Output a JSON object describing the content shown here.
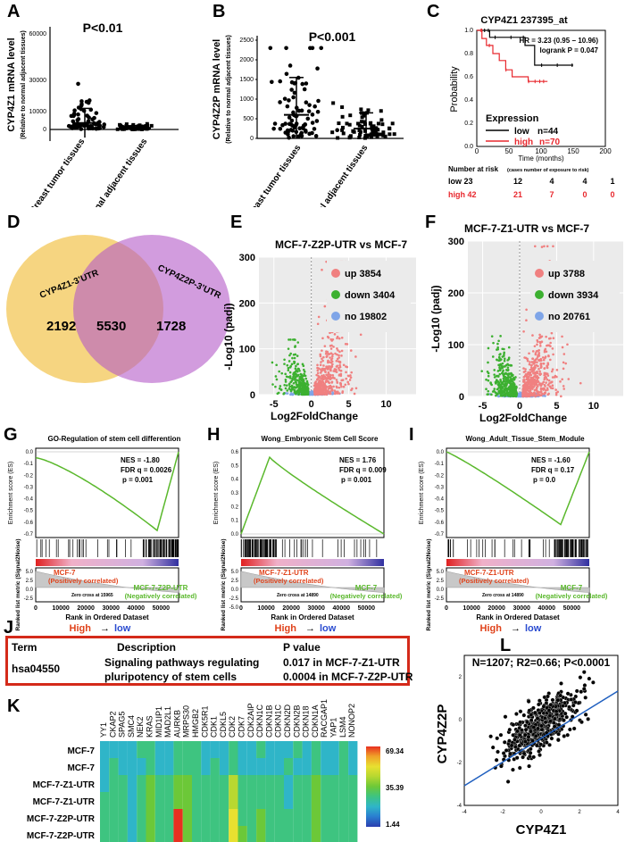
{
  "panels": {
    "A": {
      "letter": "A",
      "pval": "P<0.01",
      "ylabel": "CYP4Z1 mRNA level",
      "ylabel2": "(Relative to normal adjacent tissues)",
      "ticks": [
        "60000",
        "30000",
        "10000",
        "0"
      ],
      "cats": [
        "Breast tumor tissues",
        "Normal adjacent tissues"
      ]
    },
    "B": {
      "letter": "B",
      "pval": "P<0.001",
      "ylabel": "CYP4Z2P mRNA level",
      "ylabel2": "(Relative to normal adjacent tissues)",
      "ticks": [
        "2500",
        "2000",
        "1500",
        "1000",
        "500",
        "0"
      ],
      "cats": [
        "Breast tumor tissues",
        "Normal adjacent tissues"
      ]
    },
    "C": {
      "letter": "C",
      "title": "CYP4Z1 237395_at",
      "hr": "HR = 3.23 (0.95 − 10.96)",
      "logrank": "logrank P = 0.047",
      "ylabel": "Probability",
      "xlabel": "Time (months)",
      "yticks": [
        "1.0",
        "0.8",
        "0.6",
        "0.4",
        "0.2",
        "0.0"
      ],
      "xticks": [
        "0",
        "50",
        "100",
        "150",
        "200"
      ],
      "legend_title": "Expression",
      "low": "low",
      "low_n": "n=44",
      "high": "high",
      "high_n": "n=70",
      "risk_title": "Number at risk",
      "risk_note": "(cases number of exposure to risk)",
      "risk_low": [
        "low 23",
        "12",
        "4",
        "4",
        "1"
      ],
      "risk_high": [
        "high 42",
        "21",
        "7",
        "0",
        "0"
      ]
    },
    "D": {
      "letter": "D",
      "set1": "CYP4Z1-3’UTR",
      "set2": "CYP4Z2P-3’UTR",
      "n1": "2192",
      "n12": "5530",
      "n2": "1728"
    },
    "E": {
      "letter": "E",
      "title": "MCF-7-Z2P-UTR vs MCF-7",
      "ylabel": "-Log10 (padj)",
      "xlabel": "Log2FoldChange",
      "yticks": [
        "300",
        "200",
        "100",
        "0"
      ],
      "xticks": [
        "-5",
        "0",
        "5",
        "10"
      ],
      "up": "up 3854",
      "down": "down 3404",
      "no": "no 19802"
    },
    "F": {
      "letter": "F",
      "title": "MCF-7-Z1-UTR vs MCF-7",
      "ylabel": "-Log10 (padj)",
      "xlabel": "Log2FoldChange",
      "yticks": [
        "300",
        "200",
        "100",
        "0"
      ],
      "xticks": [
        "-5",
        "0",
        "5",
        "10"
      ],
      "up": "up 3788",
      "down": "down 3934",
      "no": "no 20761"
    },
    "G": {
      "letter": "G",
      "title": "GO-Regulation of stem cell differention",
      "nes": "NES = -1.80",
      "fdr": "FDR q = 0.0026",
      "p": "p = 0.001",
      "es_label": "Enrichment score (ES)",
      "rank_label": "Ranked list metric (Signal2Noise)",
      "pos": "MCF-7",
      "pos2": "(Positively correlated)",
      "neg": "MCF-7-Z2P-UTR",
      "neg2": "(Negatively correlated)",
      "zero": "Zero cross at 15965",
      "xlabel": "Rank in Ordered Dataset",
      "high": "High",
      "low": "low",
      "esticks": [
        "0.0",
        "-0.1",
        "-0.2",
        "-0.3",
        "-0.4",
        "-0.5",
        "-0.6",
        "-0.7"
      ],
      "xticks": [
        "0",
        "10000",
        "20000",
        "30000",
        "40000",
        "50000"
      ],
      "rticks": [
        "5.0",
        "2.5",
        "0.0",
        "-2.5"
      ]
    },
    "H": {
      "letter": "H",
      "title": "Wong_Embryonic Stem Cell Score",
      "nes": "NES = 1.76",
      "fdr": "FDR q = 0.009",
      "p": "p = 0.001",
      "es_label": "Enrichment score (ES)",
      "rank_label": "Ranked list metric (Signal2Noise)",
      "pos": "MCF-7-Z1-UTR",
      "pos2": "(Positively correlated)",
      "neg": "MCF-7",
      "neg2": "(Negatively correlated)",
      "zero": "Zero cross at 14890",
      "xlabel": "Rank in Ordered Dataset",
      "high": "High",
      "low": "low",
      "esticks": [
        "0.6",
        "0.5",
        "0.4",
        "0.3",
        "0.2",
        "0.1",
        "0.0"
      ],
      "xticks": [
        "0",
        "10000",
        "20000",
        "30000",
        "40000",
        "50000"
      ],
      "rticks": [
        "5.0",
        "2.5",
        "0.0",
        "-2.5",
        "-5.0"
      ]
    },
    "I": {
      "letter": "I",
      "title": "Wong_Adult_Tissue_Stem_Module",
      "nes": "NES = -1.60",
      "fdr": "FDR q = 0.17",
      "p": "p = 0.0",
      "es_label": "Enrichment score (ES)",
      "rank_label": "Ranked list metric (Signal2Noise)",
      "pos": "MCF-7-Z1-UTR",
      "pos2": "(Positively correlated)",
      "neg": "MCF-7",
      "neg2": "(Negatively correlated)",
      "zero": "Zero cross at 14890",
      "xlabel": "Rank in Ordered Dataset",
      "high": "High",
      "low": "low",
      "esticks": [
        "0.0",
        "-0.1",
        "-0.2",
        "-0.3",
        "-0.4",
        "-0.5",
        "-0.6",
        "-0.7"
      ],
      "xticks": [
        "0",
        "10000",
        "20000",
        "30000",
        "40000",
        "50000"
      ],
      "rticks": [
        "5.0",
        "2.5",
        "0.0",
        "-2.5"
      ]
    },
    "J": {
      "letter": "J",
      "h_term": "Term",
      "h_desc": "Description",
      "h_p": "P value",
      "term": "hsa04550",
      "desc1": "Signaling pathways regulating",
      "desc2": "pluripotency of stem cells",
      "p1": "0.017 in MCF-7-Z1-UTR",
      "p2": "0.0004 in MCF-7-Z2P-UTR"
    },
    "K": {
      "letter": "K",
      "genes": [
        "YY1",
        "CKAP2",
        "SPAG5",
        "SMC4",
        "NEK2",
        "KRAS",
        "MID1IP1",
        "MAD2L1",
        "AURKB",
        "MRPS30",
        "HMGB2",
        "CDK5R1",
        "CDK1",
        "CDKL5",
        "CDK2",
        "CDK7",
        "CDK2AIP",
        "CDKN1C",
        "CDKN1B",
        "CDKN1C",
        "CDKN2D",
        "CDKN2B",
        "CDKN18",
        "CDKN1A",
        "RACGAP1",
        "YAP1",
        "LSM4",
        "NONOP2"
      ],
      "rows": [
        "MCF-7",
        "MCF-7",
        "MCF-7-Z1-UTR",
        "MCF-7-Z1-UTR",
        "MCF-7-Z2P-UTR",
        "MCF-7-Z2P-UTR"
      ],
      "scale": [
        "69.34",
        "35.39",
        "1.44"
      ]
    },
    "L": {
      "letter": "L",
      "stat": "N=1207; R2=0.66; P<0.0001",
      "ylabel": "CYP4Z2P",
      "xlabel": "CYP4Z1",
      "xticks": [
        "-4",
        "-2",
        "0",
        "2",
        "4"
      ],
      "yticks": [
        "2",
        "0",
        "-2",
        "-4"
      ]
    }
  },
  "chart_data": [
    {
      "type": "scatter",
      "panel": "A",
      "categories": [
        "Breast tumor tissues",
        "Normal adjacent tissues"
      ],
      "means": [
        4000,
        800
      ],
      "ylim": [
        -10000,
        60000
      ]
    },
    {
      "type": "scatter",
      "panel": "B",
      "categories": [
        "Breast tumor tissues",
        "Normal adjacent tissues"
      ],
      "means": [
        600,
        250
      ],
      "ylim": [
        0,
        2500
      ]
    },
    {
      "type": "line",
      "panel": "C",
      "series": [
        {
          "name": "low",
          "color": "#000000",
          "x": [
            0,
            12,
            20,
            45,
            75,
            90,
            110,
            150
          ],
          "y": [
            1.0,
            1.0,
            0.94,
            0.94,
            0.87,
            0.7,
            0.7,
            0.7
          ]
        },
        {
          "name": "high",
          "color": "#e8282e",
          "x": [
            0,
            8,
            15,
            25,
            35,
            45,
            55,
            80,
            110
          ],
          "y": [
            1.0,
            0.93,
            0.87,
            0.8,
            0.74,
            0.66,
            0.6,
            0.56,
            0.56
          ]
        }
      ],
      "xlim": [
        0,
        200
      ],
      "ylim": [
        0,
        1
      ]
    },
    {
      "type": "scatter",
      "panel": "E",
      "xlim": [
        -7,
        14
      ],
      "ylim": [
        0,
        300
      ]
    },
    {
      "type": "scatter",
      "panel": "F",
      "xlim": [
        -7,
        14
      ],
      "ylim": [
        0,
        300
      ]
    },
    {
      "type": "line",
      "panel": "G",
      "ylim": [
        -0.75,
        0.0
      ]
    },
    {
      "type": "line",
      "panel": "H",
      "ylim": [
        0.0,
        0.6
      ]
    },
    {
      "type": "line",
      "panel": "I",
      "ylim": [
        -0.7,
        0.0
      ]
    },
    {
      "type": "heatmap",
      "panel": "K"
    },
    {
      "type": "scatter",
      "panel": "L",
      "xlim": [
        -4,
        4
      ],
      "ylim": [
        -4,
        3
      ]
    }
  ]
}
